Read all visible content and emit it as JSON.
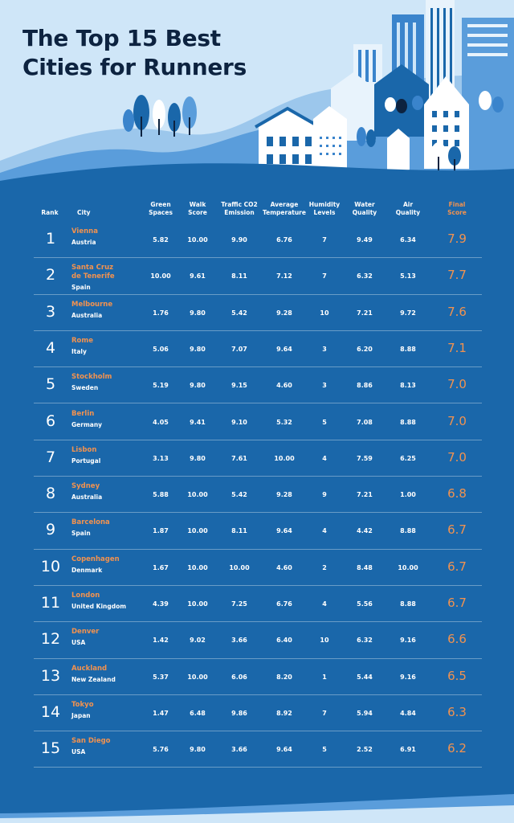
{
  "title": {
    "line1": "The Top 15 Best",
    "line2": "Cities for Runners"
  },
  "colors": {
    "background": "#1a67aa",
    "accent": "#f2924f",
    "title": "#0d2340",
    "sky": "#cfe6f8"
  },
  "headers": {
    "rank": "Rank",
    "city": "City",
    "green": [
      "Green",
      "Spaces"
    ],
    "walk": [
      "Walk",
      "Score"
    ],
    "traffic": [
      "Traffic CO2",
      "Emission"
    ],
    "temp": [
      "Average",
      "Temperature"
    ],
    "humidity": [
      "Humidity",
      "Levels"
    ],
    "water": [
      "Water",
      "Quality"
    ],
    "air": [
      "Air",
      "Quality"
    ],
    "final": [
      "Final",
      "Score"
    ]
  },
  "rows": [
    {
      "rank": "1",
      "city": [
        "Vienna"
      ],
      "country": "Austria",
      "green": "5.82",
      "walk": "10.00",
      "traffic": "9.90",
      "temp": "6.76",
      "humidity": "7",
      "water": "9.49",
      "air": "6.34",
      "score": "7.9"
    },
    {
      "rank": "2",
      "city": [
        "Santa Cruz",
        "de Tenerife"
      ],
      "country": "Spain",
      "green": "10.00",
      "walk": "9.61",
      "traffic": "8.11",
      "temp": "7.12",
      "humidity": "7",
      "water": "6.32",
      "air": "5.13",
      "score": "7.7"
    },
    {
      "rank": "3",
      "city": [
        "Melbourne"
      ],
      "country": "Australia",
      "green": "1.76",
      "walk": "9.80",
      "traffic": "5.42",
      "temp": "9.28",
      "humidity": "10",
      "water": "7.21",
      "air": "9.72",
      "score": "7.6"
    },
    {
      "rank": "4",
      "city": [
        "Rome"
      ],
      "country": "Italy",
      "green": "5.06",
      "walk": "9.80",
      "traffic": "7.07",
      "temp": "9.64",
      "humidity": "3",
      "water": "6.20",
      "air": "8.88",
      "score": "7.1"
    },
    {
      "rank": "5",
      "city": [
        "Stockholm"
      ],
      "country": "Sweden",
      "green": "5.19",
      "walk": "9.80",
      "traffic": "9.15",
      "temp": "4.60",
      "humidity": "3",
      "water": "8.86",
      "air": "8.13",
      "score": "7.0"
    },
    {
      "rank": "6",
      "city": [
        "Berlin"
      ],
      "country": "Germany",
      "green": "4.05",
      "walk": "9.41",
      "traffic": "9.10",
      "temp": "5.32",
      "humidity": "5",
      "water": "7.08",
      "air": "8.88",
      "score": "7.0"
    },
    {
      "rank": "7",
      "city": [
        "Lisbon"
      ],
      "country": "Portugal",
      "green": "3.13",
      "walk": "9.80",
      "traffic": "7.61",
      "temp": "10.00",
      "humidity": "4",
      "water": "7.59",
      "air": "6.25",
      "score": "7.0"
    },
    {
      "rank": "8",
      "city": [
        "Sydney"
      ],
      "country": "Australia",
      "green": "5.88",
      "walk": "10.00",
      "traffic": "5.42",
      "temp": "9.28",
      "humidity": "9",
      "water": "7.21",
      "air": "1.00",
      "score": "6.8"
    },
    {
      "rank": "9",
      "city": [
        "Barcelona"
      ],
      "country": "Spain",
      "green": "1.87",
      "walk": "10.00",
      "traffic": "8.11",
      "temp": "9.64",
      "humidity": "4",
      "water": "4.42",
      "air": "8.88",
      "score": "6.7"
    },
    {
      "rank": "10",
      "city": [
        "Copenhagen"
      ],
      "country": "Denmark",
      "green": "1.67",
      "walk": "10.00",
      "traffic": "10.00",
      "temp": "4.60",
      "humidity": "2",
      "water": "8.48",
      "air": "10.00",
      "score": "6.7"
    },
    {
      "rank": "11",
      "city": [
        "London"
      ],
      "country": "United Kingdom",
      "green": "4.39",
      "walk": "10.00",
      "traffic": "7.25",
      "temp": "6.76",
      "humidity": "4",
      "water": "5.56",
      "air": "8.88",
      "score": "6.7"
    },
    {
      "rank": "12",
      "city": [
        "Denver"
      ],
      "country": "USA",
      "green": "1.42",
      "walk": "9.02",
      "traffic": "3.66",
      "temp": "6.40",
      "humidity": "10",
      "water": "6.32",
      "air": "9.16",
      "score": "6.6"
    },
    {
      "rank": "13",
      "city": [
        "Auckland"
      ],
      "country": "New Zealand",
      "green": "5.37",
      "walk": "10.00",
      "traffic": "6.06",
      "temp": "8.20",
      "humidity": "1",
      "water": "5.44",
      "air": "9.16",
      "score": "6.5"
    },
    {
      "rank": "14",
      "city": [
        "Tokyo"
      ],
      "country": "Japan",
      "green": "1.47",
      "walk": "6.48",
      "traffic": "9.86",
      "temp": "8.92",
      "humidity": "7",
      "water": "5.94",
      "air": "4.84",
      "score": "6.3"
    },
    {
      "rank": "15",
      "city": [
        "San Diego"
      ],
      "country": "USA",
      "green": "5.76",
      "walk": "9.80",
      "traffic": "3.66",
      "temp": "9.64",
      "humidity": "5",
      "water": "2.52",
      "air": "6.91",
      "score": "6.2"
    }
  ]
}
